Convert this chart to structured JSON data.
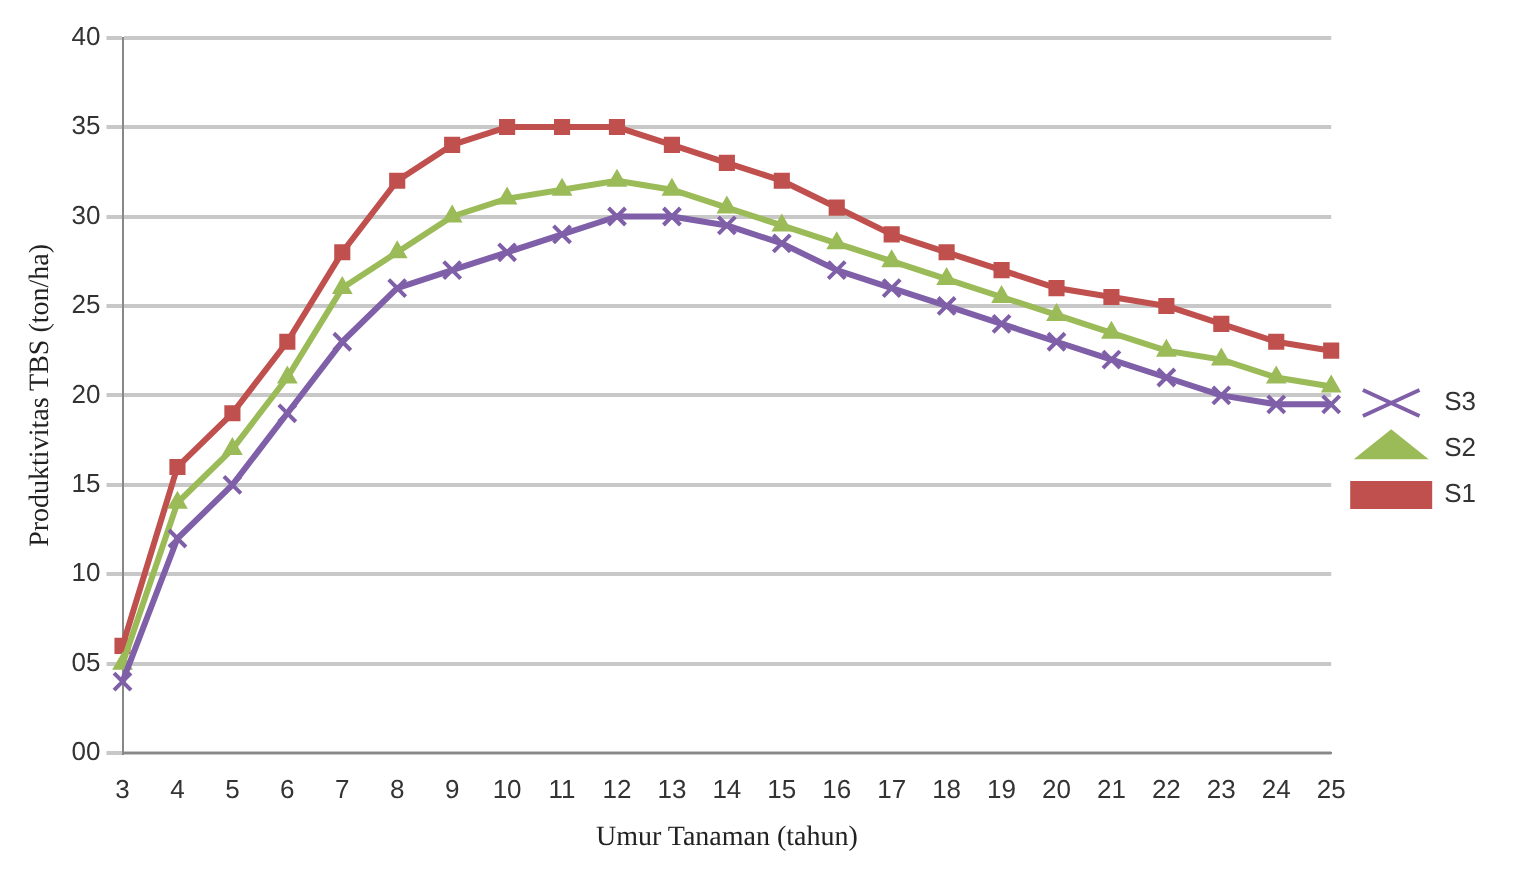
{
  "chart_data": {
    "type": "line",
    "xlabel": "Umur Tanaman (tahun)",
    "ylabel": "Produktivitas TBS (ton/ha)",
    "categories": [
      "3",
      "4",
      "5",
      "6",
      "7",
      "8",
      "9",
      "10",
      "11",
      "12",
      "13",
      "14",
      "15",
      "16",
      "17",
      "18",
      "19",
      "20",
      "21",
      "22",
      "23",
      "24",
      "25"
    ],
    "series": [
      {
        "name": "S1",
        "color": "#c0504d",
        "marker": "square",
        "values": [
          6,
          16,
          19,
          23,
          28,
          32,
          34,
          35,
          35,
          35,
          34,
          33,
          32,
          30.5,
          29,
          28,
          27,
          26,
          25.5,
          25,
          24,
          23,
          22.5
        ]
      },
      {
        "name": "S2",
        "color": "#9bbb59",
        "marker": "triangle",
        "values": [
          5,
          14,
          17,
          21,
          26,
          28,
          30,
          31,
          31.5,
          32,
          31.5,
          30.5,
          29.5,
          28.5,
          27.5,
          26.5,
          25.5,
          24.5,
          23.5,
          22.5,
          22,
          21,
          20.5
        ]
      },
      {
        "name": "S3",
        "color": "#7f5fa8",
        "marker": "cross",
        "values": [
          4,
          12,
          15,
          19,
          23,
          26,
          27,
          28,
          29,
          30,
          30,
          29.5,
          28.5,
          27,
          26,
          25,
          24,
          23,
          22,
          21,
          20,
          19.5,
          19.5
        ]
      }
    ],
    "ylim": [
      0,
      40
    ],
    "yticks": [
      {
        "value": 0,
        "label": "00"
      },
      {
        "value": 5,
        "label": "05"
      },
      10,
      15,
      20,
      25,
      30,
      35,
      40
    ],
    "grid": "y",
    "legend": "right",
    "line_style": "solid"
  }
}
